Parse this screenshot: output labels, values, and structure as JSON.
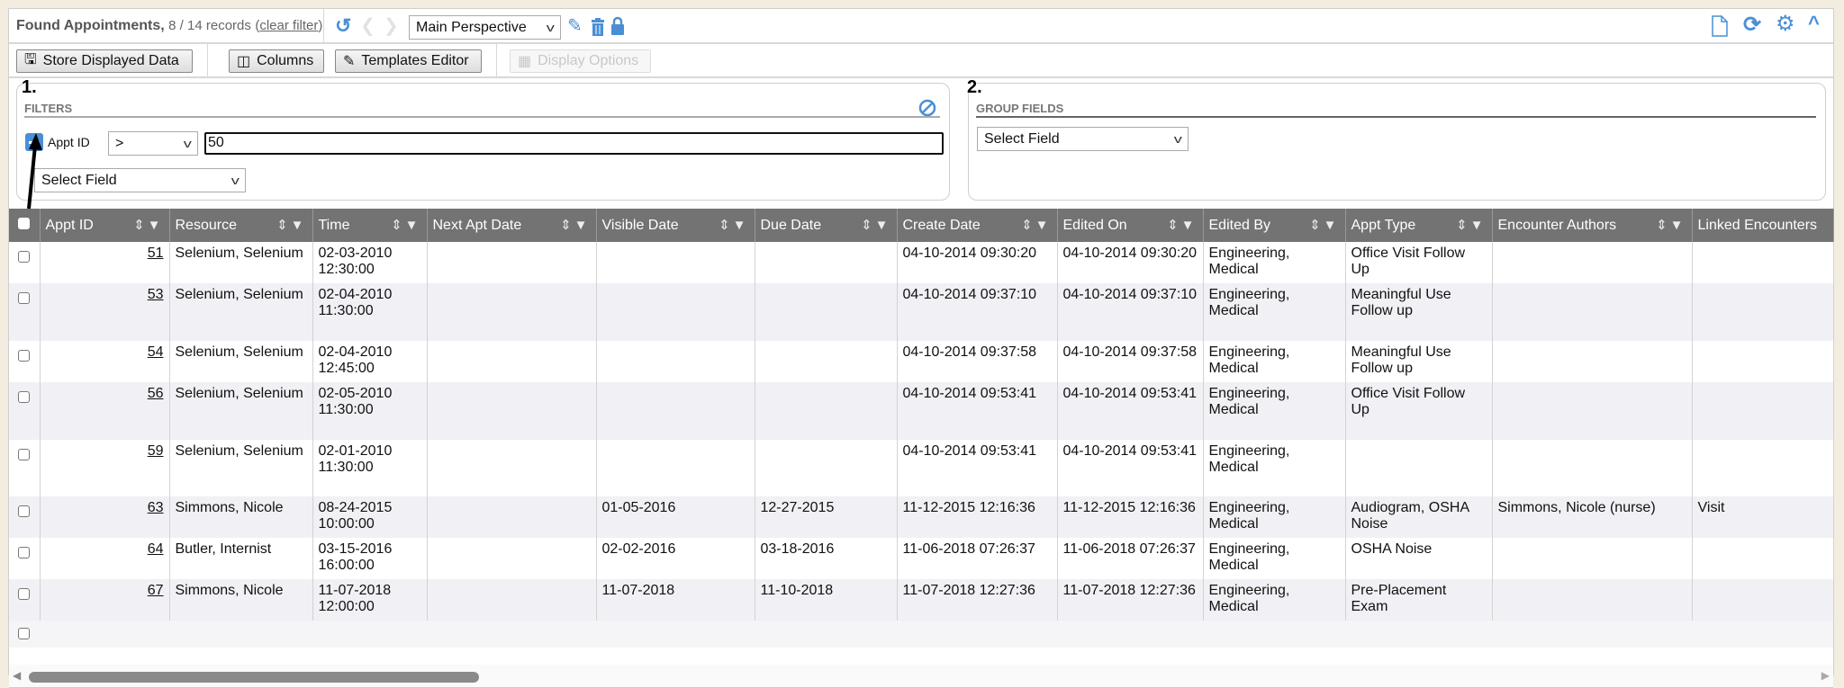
{
  "header": {
    "title": "Found Appointments,",
    "record_count": "8 / 14 records",
    "clear_filter_open": "(",
    "clear_filter": "clear filter",
    "clear_filter_close": ")",
    "perspective": "Main Perspective"
  },
  "toolbar": {
    "store_label": "Store Displayed Data",
    "columns_label": "Columns",
    "templates_label": "Templates Editor",
    "display_options_label": "Display Options"
  },
  "annotations": {
    "one": "1.",
    "two": "2."
  },
  "filters": {
    "title": "FILTERS",
    "field": "Appt ID",
    "operator": ">",
    "value": "50",
    "select_field": "Select Field"
  },
  "group_fields": {
    "title": "GROUP FIELDS",
    "select_field": "Select Field"
  },
  "colors": {
    "accent": "#4a8fd6",
    "header_bg": "#737373",
    "alt_row": "#f0f0f5"
  },
  "table": {
    "columns": [
      "Appt ID",
      "Resource",
      "Time",
      "Next Apt Date",
      "Visible Date",
      "Due Date",
      "Create Date",
      "Edited On",
      "Edited By",
      "Appt Type",
      "Encounter Authors",
      "Linked Encounters"
    ],
    "rows": [
      [
        "51",
        "Selenium, Selenium",
        "02-03-2010 12:30:00",
        "",
        "",
        "",
        "04-10-2014 09:30:20",
        "04-10-2014 09:30:20",
        "Engineering, Medical",
        "Office Visit Follow Up",
        "",
        ""
      ],
      [
        "53",
        "Selenium, Selenium",
        "02-04-2010 11:30:00",
        "",
        "",
        "",
        "04-10-2014 09:37:10",
        "04-10-2014 09:37:10",
        "Engineering, Medical",
        "Meaningful Use Follow up",
        "",
        ""
      ],
      [
        "54",
        "Selenium, Selenium",
        "02-04-2010 12:45:00",
        "",
        "",
        "",
        "04-10-2014 09:37:58",
        "04-10-2014 09:37:58",
        "Engineering, Medical",
        "Meaningful Use Follow up",
        "",
        ""
      ],
      [
        "56",
        "Selenium, Selenium",
        "02-05-2010 11:30:00",
        "",
        "",
        "",
        "04-10-2014 09:53:41",
        "04-10-2014 09:53:41",
        "Engineering, Medical",
        "Office Visit Follow Up",
        "",
        ""
      ],
      [
        "59",
        "Selenium, Selenium",
        "02-01-2010 11:30:00",
        "",
        "",
        "",
        "04-10-2014 09:53:41",
        "04-10-2014 09:53:41",
        "Engineering, Medical",
        "",
        "",
        ""
      ],
      [
        "63",
        "Simmons, Nicole",
        "08-24-2015 10:00:00",
        "",
        "01-05-2016",
        "12-27-2015",
        "11-12-2015 12:16:36",
        "11-12-2015 12:16:36",
        "Engineering, Medical",
        "Audiogram, OSHA Noise",
        "Simmons, Nicole (nurse)",
        "Visit"
      ],
      [
        "64",
        "Butler, Internist",
        "03-15-2016 16:00:00",
        "",
        "02-02-2016",
        "03-18-2016",
        "11-06-2018 07:26:37",
        "11-06-2018 07:26:37",
        "Engineering, Medical",
        "OSHA Noise",
        "",
        ""
      ],
      [
        "67",
        "Simmons, Nicole",
        "11-07-2018 12:00:00",
        "",
        "11-07-2018",
        "11-10-2018",
        "11-07-2018 12:27:36",
        "11-07-2018 12:27:36",
        "Engineering, Medical",
        "Pre-Placement Exam",
        "",
        ""
      ]
    ]
  }
}
